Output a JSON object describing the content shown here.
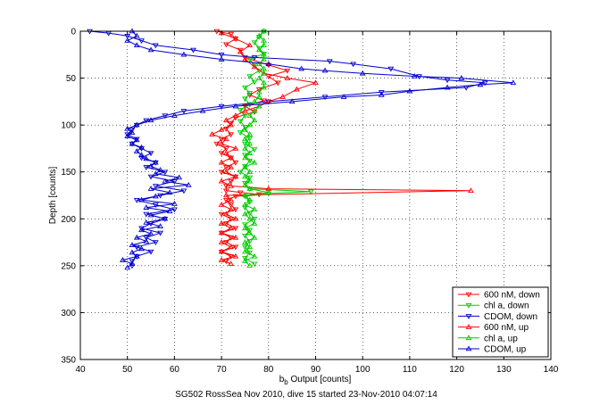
{
  "figure": {
    "caption": "SG502 RossSea Nov 2010, dive 15 started 23-Nov-2010 04:07:14"
  },
  "chart_data": {
    "type": "line",
    "xlabel_main": "b",
    "xlabel_sub": "b",
    "xlabel_rest": " Output [counts]",
    "ylabel": "Depth [counts]",
    "xlim": [
      40,
      140
    ],
    "ylim": [
      0,
      350
    ],
    "y_reversed": true,
    "xticks": [
      40,
      50,
      60,
      70,
      80,
      90,
      100,
      110,
      120,
      130,
      140
    ],
    "yticks": [
      0,
      50,
      100,
      150,
      200,
      250,
      300,
      350
    ],
    "grid": true,
    "legend_position": "lower-right",
    "series": [
      {
        "name": "600 nM, down",
        "color": "#ff0000",
        "marker": "triangle-down",
        "points": [
          [
            69,
            0
          ],
          [
            72,
            3
          ],
          [
            73,
            8
          ],
          [
            71,
            14
          ],
          [
            74,
            20
          ],
          [
            75,
            28
          ],
          [
            80,
            36
          ],
          [
            84,
            42
          ],
          [
            80,
            48
          ],
          [
            82,
            55
          ],
          [
            78,
            62
          ],
          [
            76,
            68
          ],
          [
            79,
            74
          ],
          [
            75,
            80
          ],
          [
            77,
            86
          ],
          [
            73,
            92
          ],
          [
            72,
            98
          ],
          [
            71,
            104
          ],
          [
            72,
            110
          ],
          [
            70,
            115
          ],
          [
            69,
            120
          ],
          [
            71,
            125
          ],
          [
            70,
            130
          ],
          [
            72,
            135
          ],
          [
            73,
            140
          ],
          [
            71,
            145
          ],
          [
            70,
            150
          ],
          [
            73,
            155
          ],
          [
            72,
            160
          ],
          [
            71,
            165
          ],
          [
            71,
            170
          ],
          [
            74,
            172
          ],
          [
            78,
            174
          ],
          [
            73,
            176
          ],
          [
            71,
            180
          ],
          [
            72,
            185
          ],
          [
            73,
            190
          ],
          [
            70,
            195
          ],
          [
            72,
            200
          ],
          [
            71,
            205
          ],
          [
            73,
            210
          ],
          [
            70,
            215
          ],
          [
            72,
            220
          ],
          [
            71,
            225
          ],
          [
            73,
            230
          ],
          [
            70,
            235
          ],
          [
            72,
            240
          ],
          [
            71,
            245
          ]
        ]
      },
      {
        "name": "chl a, down",
        "color": "#00cc00",
        "marker": "triangle-down",
        "points": [
          [
            79,
            0
          ],
          [
            78,
            6
          ],
          [
            77,
            12
          ],
          [
            78,
            18
          ],
          [
            79,
            24
          ],
          [
            76,
            30
          ],
          [
            77,
            36
          ],
          [
            78,
            42
          ],
          [
            76,
            48
          ],
          [
            77,
            54
          ],
          [
            75,
            60
          ],
          [
            76,
            66
          ],
          [
            75,
            72
          ],
          [
            76,
            78
          ],
          [
            74,
            84
          ],
          [
            75,
            90
          ],
          [
            74,
            96
          ],
          [
            75,
            102
          ],
          [
            74,
            108
          ],
          [
            76,
            114
          ],
          [
            75,
            120
          ],
          [
            77,
            126
          ],
          [
            75,
            132
          ],
          [
            76,
            138
          ],
          [
            75,
            144
          ],
          [
            74,
            150
          ],
          [
            76,
            156
          ],
          [
            75,
            162
          ],
          [
            76,
            168
          ],
          [
            89,
            171
          ],
          [
            80,
            173
          ],
          [
            75,
            176
          ],
          [
            76,
            182
          ],
          [
            75,
            188
          ],
          [
            76,
            194
          ],
          [
            77,
            200
          ],
          [
            75,
            206
          ],
          [
            76,
            212
          ],
          [
            75,
            218
          ],
          [
            76,
            224
          ],
          [
            75,
            230
          ],
          [
            76,
            236
          ],
          [
            75,
            242
          ],
          [
            77,
            248
          ]
        ]
      },
      {
        "name": "CDOM, down",
        "color": "#0000cc",
        "marker": "triangle-down",
        "points": [
          [
            42,
            0
          ],
          [
            46,
            2
          ],
          [
            50,
            5
          ],
          [
            53,
            10
          ],
          [
            56,
            15
          ],
          [
            64,
            20
          ],
          [
            70,
            25
          ],
          [
            77,
            28
          ],
          [
            93,
            32
          ],
          [
            98,
            35
          ],
          [
            106,
            40
          ],
          [
            112,
            48
          ],
          [
            118,
            52
          ],
          [
            126,
            55
          ],
          [
            122,
            60
          ],
          [
            104,
            65
          ],
          [
            92,
            70
          ],
          [
            80,
            75
          ],
          [
            70,
            80
          ],
          [
            62,
            85
          ],
          [
            58,
            90
          ],
          [
            54,
            95
          ],
          [
            52,
            100
          ],
          [
            51,
            105
          ],
          [
            50,
            110
          ],
          [
            52,
            115
          ],
          [
            51,
            120
          ],
          [
            53,
            125
          ],
          [
            55,
            130
          ],
          [
            53,
            135
          ],
          [
            56,
            140
          ],
          [
            54,
            145
          ],
          [
            58,
            150
          ],
          [
            55,
            155
          ],
          [
            60,
            160
          ],
          [
            56,
            165
          ],
          [
            62,
            170
          ],
          [
            57,
            175
          ],
          [
            52,
            180
          ],
          [
            56,
            185
          ],
          [
            60,
            190
          ],
          [
            54,
            195
          ],
          [
            58,
            200
          ],
          [
            55,
            205
          ],
          [
            53,
            210
          ],
          [
            57,
            215
          ],
          [
            54,
            220
          ],
          [
            56,
            225
          ],
          [
            52,
            230
          ],
          [
            55,
            235
          ],
          [
            52,
            240
          ],
          [
            51,
            245
          ],
          [
            51,
            250
          ]
        ]
      },
      {
        "name": "600 nM, up",
        "color": "#ff0000",
        "marker": "triangle-up",
        "points": [
          [
            72,
            248
          ],
          [
            70,
            244
          ],
          [
            73,
            240
          ],
          [
            70,
            235
          ],
          [
            72,
            230
          ],
          [
            70,
            225
          ],
          [
            73,
            220
          ],
          [
            70,
            215
          ],
          [
            72,
            210
          ],
          [
            70,
            205
          ],
          [
            73,
            200
          ],
          [
            71,
            195
          ],
          [
            72,
            190
          ],
          [
            70,
            185
          ],
          [
            72,
            180
          ],
          [
            71,
            175
          ],
          [
            123,
            170
          ],
          [
            80,
            168
          ],
          [
            72,
            165
          ],
          [
            70,
            160
          ],
          [
            73,
            155
          ],
          [
            71,
            150
          ],
          [
            72,
            145
          ],
          [
            70,
            140
          ],
          [
            72,
            135
          ],
          [
            71,
            130
          ],
          [
            73,
            125
          ],
          [
            70,
            120
          ],
          [
            71,
            115
          ],
          [
            68,
            110
          ],
          [
            70,
            105
          ],
          [
            72,
            100
          ],
          [
            71,
            95
          ],
          [
            73,
            90
          ],
          [
            75,
            85
          ],
          [
            78,
            80
          ],
          [
            80,
            75
          ],
          [
            83,
            70
          ],
          [
            86,
            62
          ],
          [
            90,
            55
          ],
          [
            84,
            50
          ],
          [
            79,
            45
          ],
          [
            77,
            38
          ],
          [
            75,
            30
          ],
          [
            74,
            22
          ],
          [
            76,
            15
          ],
          [
            73,
            8
          ],
          [
            70,
            2
          ]
        ]
      },
      {
        "name": "chl a, up",
        "color": "#00cc00",
        "marker": "triangle-up",
        "points": [
          [
            76,
            250
          ],
          [
            75,
            245
          ],
          [
            77,
            240
          ],
          [
            75,
            235
          ],
          [
            76,
            230
          ],
          [
            75,
            225
          ],
          [
            77,
            220
          ],
          [
            76,
            215
          ],
          [
            75,
            210
          ],
          [
            77,
            205
          ],
          [
            76,
            200
          ],
          [
            75,
            195
          ],
          [
            77,
            190
          ],
          [
            75,
            185
          ],
          [
            76,
            180
          ],
          [
            75,
            175
          ],
          [
            80,
            172
          ],
          [
            76,
            168
          ],
          [
            75,
            164
          ],
          [
            76,
            160
          ],
          [
            75,
            155
          ],
          [
            76,
            150
          ],
          [
            75,
            145
          ],
          [
            77,
            140
          ],
          [
            75,
            135
          ],
          [
            76,
            130
          ],
          [
            75,
            125
          ],
          [
            76,
            120
          ],
          [
            75,
            115
          ],
          [
            76,
            110
          ],
          [
            75,
            105
          ],
          [
            76,
            100
          ],
          [
            77,
            95
          ],
          [
            76,
            90
          ],
          [
            77,
            85
          ],
          [
            78,
            80
          ],
          [
            77,
            75
          ],
          [
            78,
            70
          ],
          [
            78,
            65
          ],
          [
            79,
            60
          ],
          [
            79,
            55
          ],
          [
            78,
            50
          ],
          [
            79,
            45
          ],
          [
            79,
            40
          ],
          [
            78,
            35
          ],
          [
            79,
            30
          ],
          [
            79,
            25
          ],
          [
            78,
            20
          ],
          [
            79,
            15
          ],
          [
            79,
            10
          ],
          [
            78,
            5
          ],
          [
            79,
            0
          ]
        ]
      },
      {
        "name": "CDOM, up",
        "color": "#0000cc",
        "marker": "triangle-up",
        "points": [
          [
            50,
            252
          ],
          [
            51,
            248
          ],
          [
            49,
            244
          ],
          [
            52,
            240
          ],
          [
            51,
            236
          ],
          [
            53,
            232
          ],
          [
            51,
            228
          ],
          [
            54,
            224
          ],
          [
            52,
            220
          ],
          [
            55,
            216
          ],
          [
            53,
            212
          ],
          [
            57,
            208
          ],
          [
            54,
            204
          ],
          [
            58,
            200
          ],
          [
            55,
            196
          ],
          [
            59,
            192
          ],
          [
            54,
            188
          ],
          [
            60,
            184
          ],
          [
            53,
            180
          ],
          [
            56,
            176
          ],
          [
            59,
            172
          ],
          [
            55,
            168
          ],
          [
            63,
            164
          ],
          [
            58,
            160
          ],
          [
            61,
            156
          ],
          [
            56,
            152
          ],
          [
            57,
            148
          ],
          [
            55,
            144
          ],
          [
            56,
            140
          ],
          [
            54,
            136
          ],
          [
            53,
            132
          ],
          [
            52,
            128
          ],
          [
            53,
            124
          ],
          [
            51,
            120
          ],
          [
            52,
            116
          ],
          [
            50,
            112
          ],
          [
            51,
            108
          ],
          [
            50,
            104
          ],
          [
            52,
            100
          ],
          [
            55,
            95
          ],
          [
            60,
            90
          ],
          [
            66,
            85
          ],
          [
            73,
            80
          ],
          [
            85,
            75
          ],
          [
            96,
            70
          ],
          [
            104,
            68
          ],
          [
            110,
            64
          ],
          [
            118,
            60
          ],
          [
            125,
            57
          ],
          [
            132,
            55
          ],
          [
            121,
            50
          ],
          [
            111,
            48
          ],
          [
            100,
            45
          ],
          [
            92,
            42
          ],
          [
            87,
            40
          ],
          [
            80,
            35
          ],
          [
            70,
            30
          ],
          [
            62,
            25
          ],
          [
            55,
            20
          ],
          [
            52,
            15
          ],
          [
            50,
            10
          ],
          [
            52,
            5
          ],
          [
            51,
            0
          ]
        ]
      }
    ]
  }
}
